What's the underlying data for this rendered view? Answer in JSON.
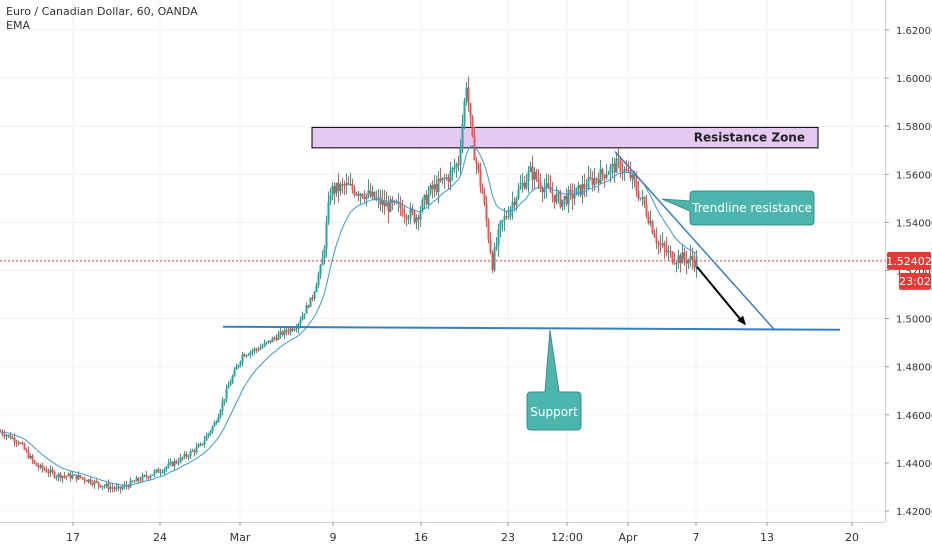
{
  "header": {
    "symbol_line": "Euro / Canadian Dollar, 60, OANDA",
    "indicator": "EMA"
  },
  "colors": {
    "up": "#26a69a",
    "down": "#ef5350",
    "candle_body": "#333333",
    "ema": "#3a9bd8",
    "trend_lines": "#3a7fc1",
    "annotation_fill": "#4db6ac",
    "resistance_fill": "#e4c9f0",
    "price_line": "#e53935",
    "grid": "#eef0f3"
  },
  "chart_data": {
    "type": "candlestick",
    "title": "Euro / Canadian Dollar, 60, OANDA",
    "y_axis": {
      "ticks": [
        "1.62000",
        "1.60000",
        "1.58000",
        "1.56000",
        "1.54000",
        "1.52000",
        "1.50000",
        "1.48000",
        "1.46000",
        "1.44000",
        "1.42000"
      ],
      "range": [
        1.415,
        1.627
      ]
    },
    "x_axis": {
      "ticks": [
        "17",
        "24",
        "Mar",
        "9",
        "16",
        "23",
        "12:00",
        "Apr",
        "7",
        "13",
        "20"
      ]
    },
    "price_path": [
      [
        0,
        1.453
      ],
      [
        18,
        1.449
      ],
      [
        35,
        1.439
      ],
      [
        55,
        1.435
      ],
      [
        80,
        1.434
      ],
      [
        100,
        1.431
      ],
      [
        118,
        1.429
      ],
      [
        138,
        1.433
      ],
      [
        160,
        1.437
      ],
      [
        182,
        1.442
      ],
      [
        200,
        1.447
      ],
      [
        215,
        1.457
      ],
      [
        228,
        1.472
      ],
      [
        242,
        1.485
      ],
      [
        260,
        1.488
      ],
      [
        278,
        1.493
      ],
      [
        296,
        1.497
      ],
      [
        312,
        1.509
      ],
      [
        322,
        1.524
      ],
      [
        330,
        1.553
      ],
      [
        345,
        1.555
      ],
      [
        365,
        1.552
      ],
      [
        385,
        1.547
      ],
      [
        400,
        1.546
      ],
      [
        415,
        1.542
      ],
      [
        430,
        1.553
      ],
      [
        448,
        1.559
      ],
      [
        458,
        1.565
      ],
      [
        466,
        1.598
      ],
      [
        472,
        1.573
      ],
      [
        482,
        1.552
      ],
      [
        492,
        1.523
      ],
      [
        500,
        1.538
      ],
      [
        515,
        1.551
      ],
      [
        530,
        1.561
      ],
      [
        545,
        1.554
      ],
      [
        560,
        1.549
      ],
      [
        575,
        1.552
      ],
      [
        590,
        1.557
      ],
      [
        605,
        1.561
      ],
      [
        618,
        1.564
      ],
      [
        630,
        1.559
      ],
      [
        645,
        1.546
      ],
      [
        658,
        1.531
      ],
      [
        670,
        1.526
      ],
      [
        682,
        1.525
      ],
      [
        696,
        1.524
      ]
    ],
    "last_price": "1.52402",
    "countdown": "23:02",
    "annotations": {
      "resistance_zone": {
        "label": "Resistance Zone",
        "low": 1.571,
        "high": 1.5795
      },
      "trendline": {
        "label": "Trendline resistance"
      },
      "support": {
        "label": "Support",
        "level": 1.496
      }
    }
  }
}
